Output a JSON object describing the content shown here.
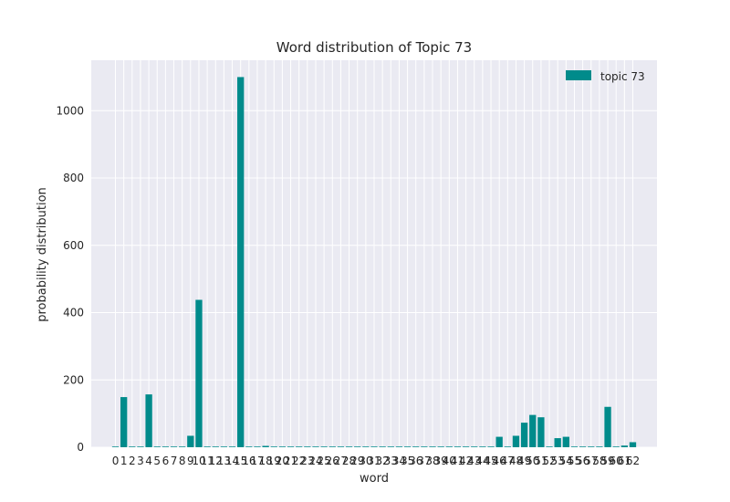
{
  "chart_data": {
    "type": "bar",
    "title": "Word distribution of Topic 73",
    "xlabel": "word",
    "ylabel": "probability distribution",
    "ylim": [
      0,
      1150
    ],
    "yticks": [
      0,
      200,
      400,
      600,
      800,
      1000
    ],
    "grid": true,
    "legend_position": "top-right",
    "categories": [
      "0",
      "1",
      "2",
      "3",
      "4",
      "5",
      "6",
      "7",
      "8",
      "9",
      "10",
      "11",
      "12",
      "13",
      "14",
      "15",
      "16",
      "17",
      "18",
      "19",
      "20",
      "21",
      "22",
      "23",
      "24",
      "25",
      "26",
      "27",
      "28",
      "29",
      "30",
      "31",
      "32",
      "33",
      "34",
      "35",
      "36",
      "37",
      "38",
      "39",
      "40",
      "41",
      "42",
      "43",
      "44",
      "45",
      "46",
      "47",
      "48",
      "49",
      "50",
      "51",
      "52",
      "53",
      "54",
      "55",
      "56",
      "57",
      "58",
      "59",
      "60",
      "61",
      "62"
    ],
    "series": [
      {
        "name": "topic 73",
        "color": "#008b8b",
        "values": [
          2,
          149,
          2,
          2,
          157,
          2,
          2,
          2,
          2,
          34,
          438,
          2,
          2,
          2,
          2,
          1100,
          2,
          2,
          4,
          2,
          2,
          2,
          2,
          2,
          2,
          2,
          2,
          2,
          2,
          2,
          2,
          2,
          2,
          2,
          2,
          2,
          2,
          2,
          2,
          2,
          2,
          2,
          2,
          2,
          2,
          2,
          31,
          2,
          34,
          73,
          96,
          89,
          2,
          27,
          31,
          2,
          2,
          2,
          2,
          120,
          2,
          5,
          15
        ]
      }
    ]
  }
}
